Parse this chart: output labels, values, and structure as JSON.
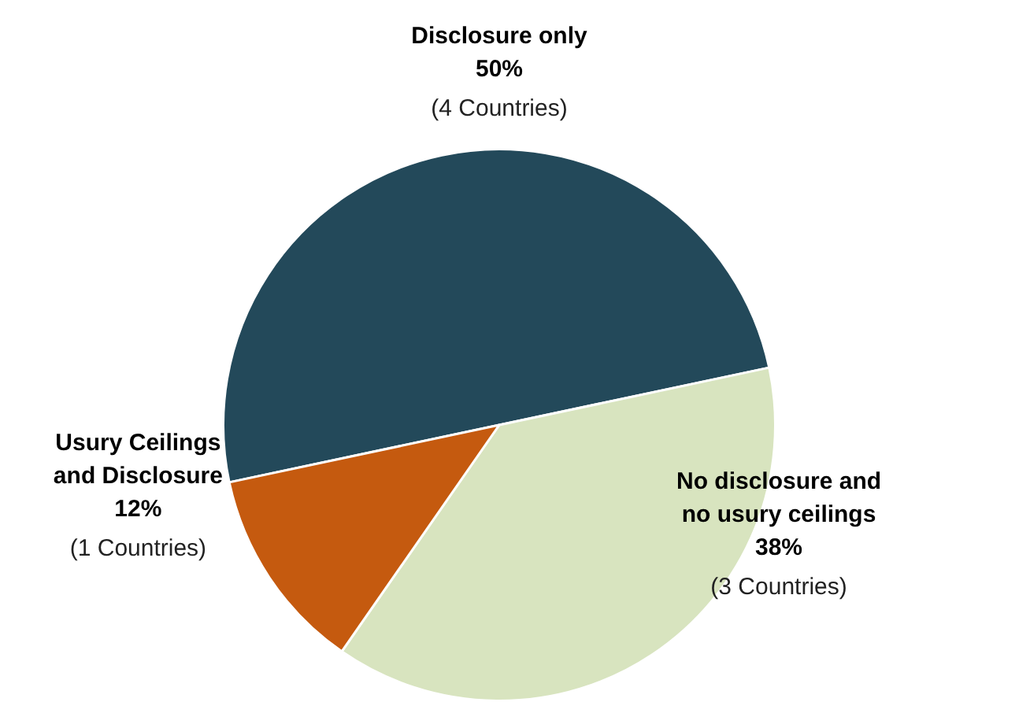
{
  "chart_data": {
    "type": "pie",
    "categories": [
      "Disclosure only",
      "No disclosure and no usury ceilings",
      "Usury Ceilings and Disclosure"
    ],
    "values": [
      50,
      38,
      12
    ],
    "colors": [
      "#23495a",
      "#d8e4bf",
      "#c55a0f"
    ],
    "value_labels": [
      "50%",
      "38%",
      "12%"
    ],
    "annotations": [
      "(4 Countries)",
      "(3 Countries)",
      "(1 Countries)"
    ],
    "legend": false
  }
}
